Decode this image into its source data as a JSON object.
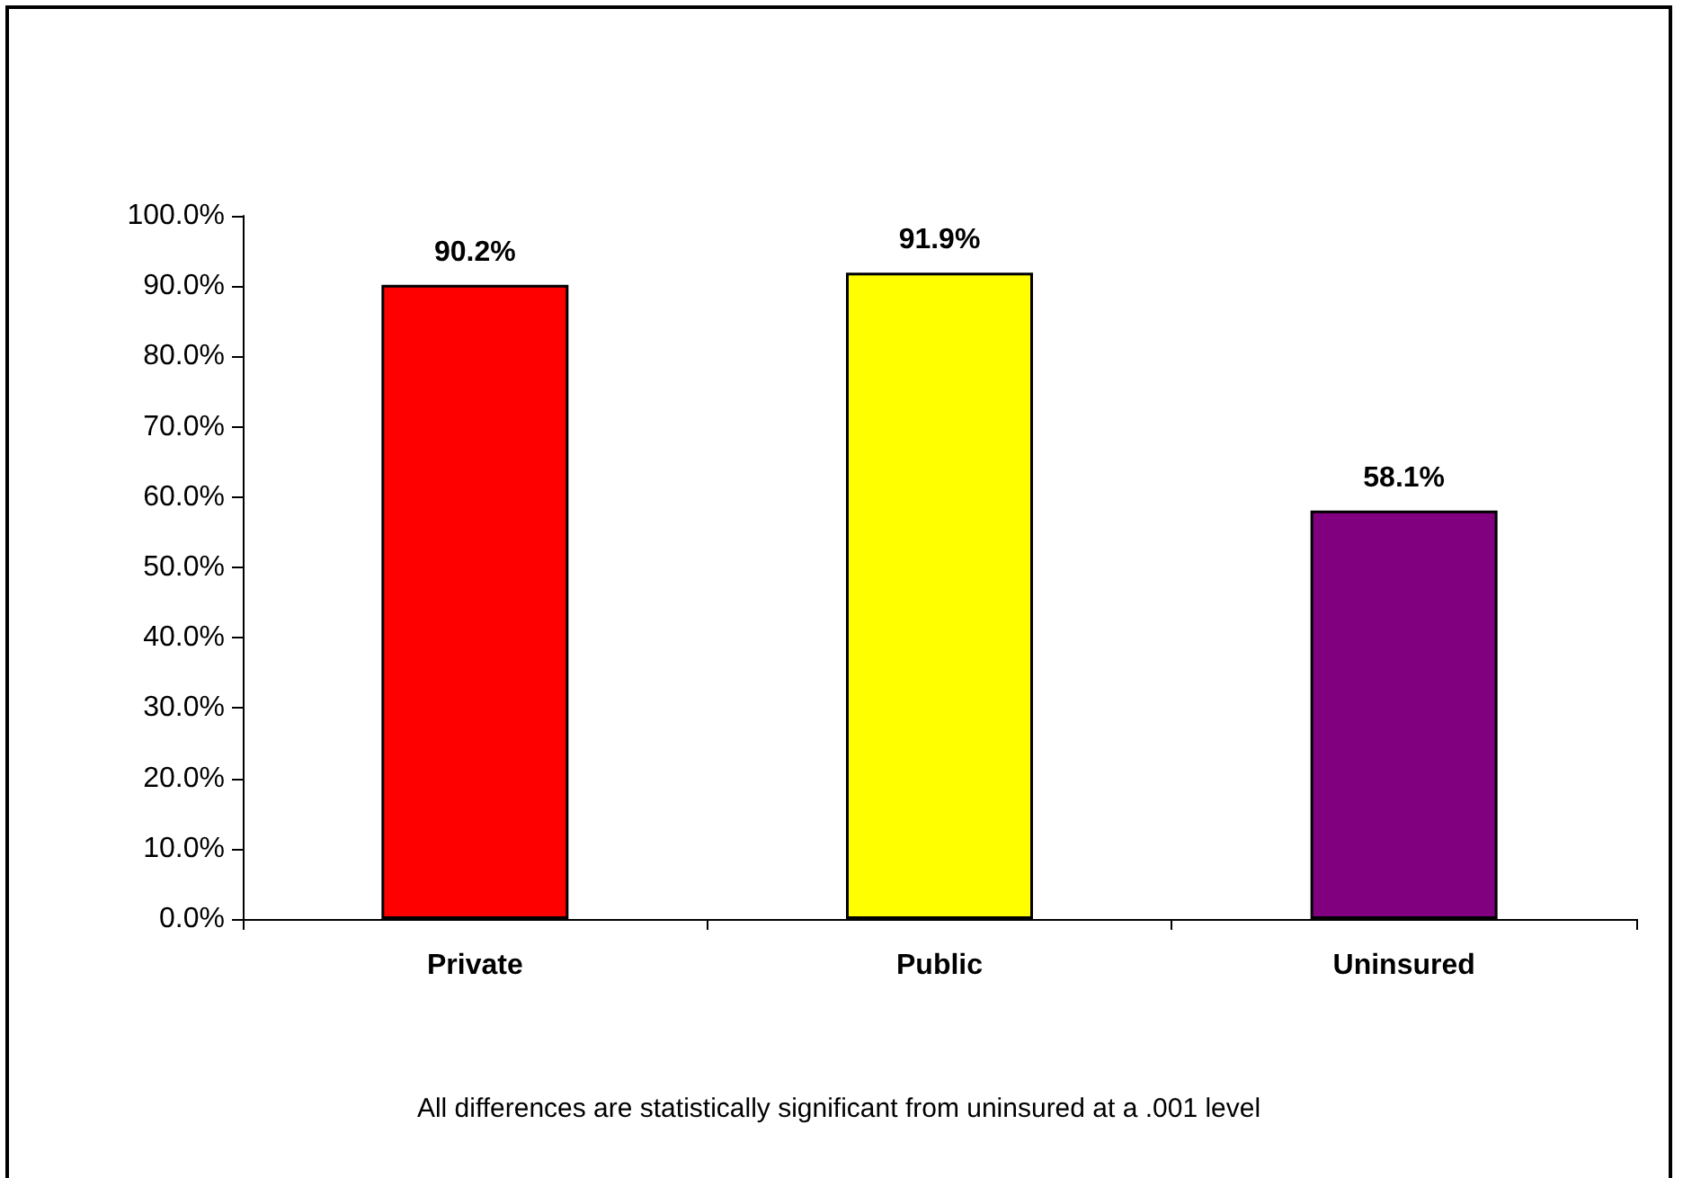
{
  "chart_data": {
    "type": "bar",
    "categories": [
      "Private",
      "Public",
      "Uninsured"
    ],
    "values": [
      90.2,
      91.9,
      58.1
    ],
    "colors": [
      "#ff0000",
      "#ffff00",
      "#800080"
    ],
    "value_labels": [
      "90.2%",
      "91.9%",
      "58.1%"
    ],
    "ylim": [
      0,
      100
    ],
    "yticks": [
      {
        "value": 0,
        "label": "0.0%"
      },
      {
        "value": 10,
        "label": "10.0%"
      },
      {
        "value": 20,
        "label": "20.0%"
      },
      {
        "value": 30,
        "label": "30.0%"
      },
      {
        "value": 40,
        "label": "40.0%"
      },
      {
        "value": 50,
        "label": "50.0%"
      },
      {
        "value": 60,
        "label": "60.0%"
      },
      {
        "value": 70,
        "label": "70.0%"
      },
      {
        "value": 80,
        "label": "80.0%"
      },
      {
        "value": 90,
        "label": "90.0%"
      },
      {
        "value": 100,
        "label": "100.0%"
      }
    ],
    "grid": false,
    "annotations": [
      "All differences are statistically significant from uninsured at a .001 level"
    ]
  }
}
